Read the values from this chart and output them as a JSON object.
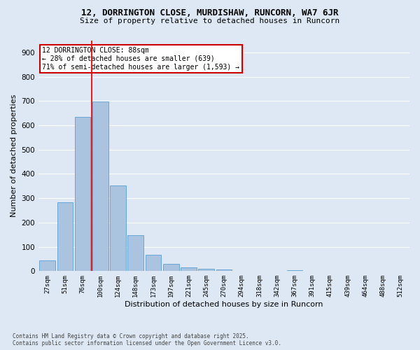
{
  "title_line1": "12, DORRINGTON CLOSE, MURDISHAW, RUNCORN, WA7 6JR",
  "title_line2": "Size of property relative to detached houses in Runcorn",
  "xlabel": "Distribution of detached houses by size in Runcorn",
  "ylabel": "Number of detached properties",
  "categories": [
    "27sqm",
    "51sqm",
    "76sqm",
    "100sqm",
    "124sqm",
    "148sqm",
    "173sqm",
    "197sqm",
    "221sqm",
    "245sqm",
    "270sqm",
    "294sqm",
    "318sqm",
    "342sqm",
    "367sqm",
    "391sqm",
    "415sqm",
    "439sqm",
    "464sqm",
    "488sqm",
    "512sqm"
  ],
  "values": [
    43,
    282,
    635,
    697,
    351,
    147,
    66,
    30,
    14,
    10,
    8,
    0,
    0,
    0,
    5,
    0,
    0,
    0,
    0,
    0,
    0
  ],
  "bar_color": "#aac4e0",
  "bar_edge_color": "#5a9fd4",
  "background_color": "#dde8f4",
  "grid_color": "#ffffff",
  "annotation_title": "12 DORRINGTON CLOSE: 88sqm",
  "annotation_line2": "← 28% of detached houses are smaller (639)",
  "annotation_line3": "71% of semi-detached houses are larger (1,593) →",
  "annotation_box_color": "#cc0000",
  "ylim": [
    0,
    950
  ],
  "yticks": [
    0,
    100,
    200,
    300,
    400,
    500,
    600,
    700,
    800,
    900
  ],
  "footnote_line1": "Contains HM Land Registry data © Crown copyright and database right 2025.",
  "footnote_line2": "Contains public sector information licensed under the Open Government Licence v3.0."
}
